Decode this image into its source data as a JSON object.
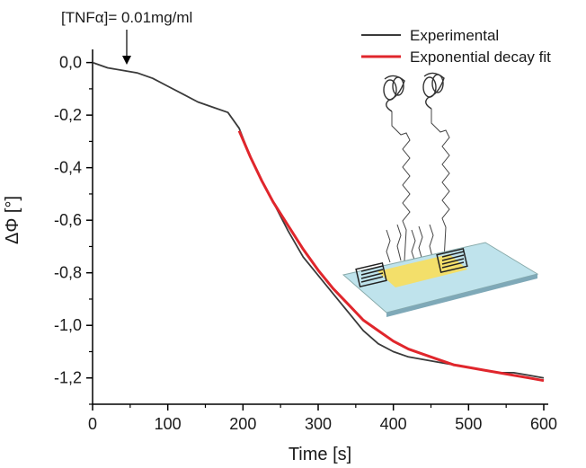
{
  "chart_data": {
    "type": "line",
    "title": "",
    "xlabel": "Time [s]",
    "ylabel": "ΔΦ [°]",
    "xlim": [
      0,
      600
    ],
    "ylim": [
      -1.3,
      0.05
    ],
    "xticks": [
      0,
      100,
      200,
      300,
      400,
      500,
      600
    ],
    "xtick_labels": [
      "0",
      "100",
      "200",
      "300",
      "400",
      "500",
      "600"
    ],
    "yticks": [
      0.0,
      -0.2,
      -0.4,
      -0.6,
      -0.8,
      -1.0,
      -1.2
    ],
    "ytick_labels": [
      "0,0",
      "-0,2",
      "-0,4",
      "-0,6",
      "-0,8",
      "-1,0",
      "-1,2"
    ],
    "grid": false,
    "legend_position": "top-right",
    "annotation": {
      "text": "[TNFα]= 0.01mg/ml",
      "x": 45,
      "y": -0.03
    },
    "inset": "schematic of sensor chip with aptamer-functionalized surface",
    "series": [
      {
        "name": "Experimental",
        "color": "#3a3a3a",
        "x": [
          0,
          20,
          40,
          60,
          80,
          100,
          120,
          140,
          160,
          180,
          195,
          210,
          225,
          240,
          260,
          280,
          300,
          320,
          340,
          360,
          380,
          400,
          420,
          440,
          460,
          480,
          500,
          520,
          540,
          560,
          580,
          600
        ],
        "y": [
          0.0,
          -0.02,
          -0.03,
          -0.04,
          -0.06,
          -0.09,
          -0.12,
          -0.15,
          -0.17,
          -0.19,
          -0.25,
          -0.36,
          -0.45,
          -0.53,
          -0.64,
          -0.74,
          -0.81,
          -0.88,
          -0.95,
          -1.02,
          -1.07,
          -1.1,
          -1.12,
          -1.13,
          -1.14,
          -1.15,
          -1.16,
          -1.17,
          -1.18,
          -1.18,
          -1.19,
          -1.2
        ]
      },
      {
        "name": "Exponential decay fit",
        "color": "#e0262c",
        "x": [
          195,
          210,
          225,
          240,
          260,
          280,
          300,
          320,
          340,
          360,
          380,
          400,
          420,
          440,
          460,
          480,
          500,
          520,
          540,
          560,
          580,
          600
        ],
        "y": [
          -0.26,
          -0.36,
          -0.45,
          -0.53,
          -0.62,
          -0.71,
          -0.79,
          -0.86,
          -0.92,
          -0.98,
          -1.02,
          -1.06,
          -1.09,
          -1.11,
          -1.13,
          -1.15,
          -1.16,
          -1.17,
          -1.18,
          -1.19,
          -1.2,
          -1.21
        ]
      }
    ]
  }
}
